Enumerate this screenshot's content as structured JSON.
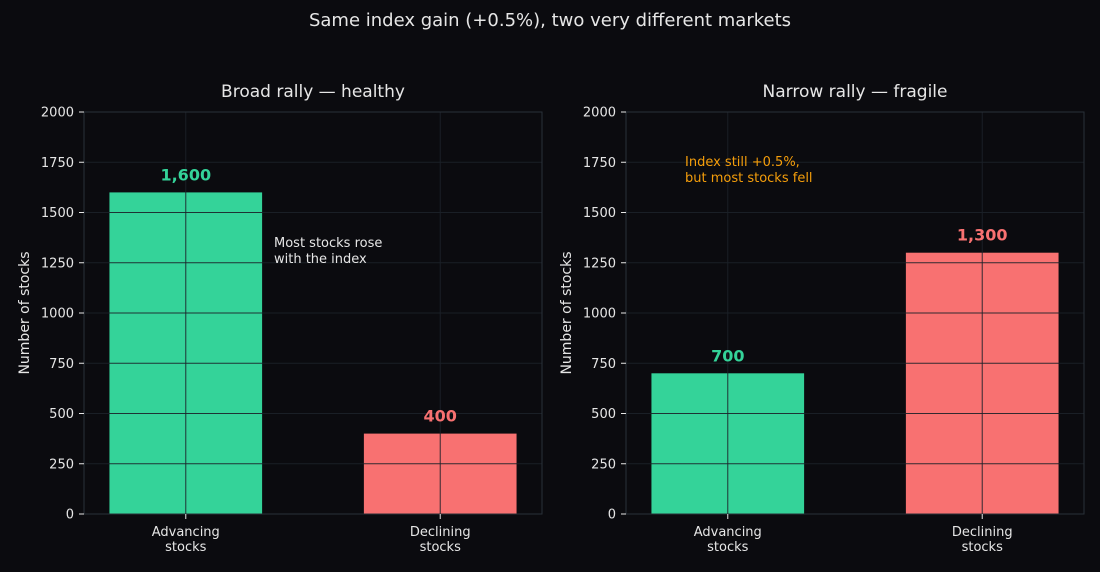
{
  "figure": {
    "title": "Same index gain (+0.5%), two very different markets"
  },
  "theme": {
    "background": "#0b0b0f",
    "text": "#e6e6e6",
    "axis": "#2a3038",
    "grid": "#1c2129",
    "advancing": "#34d399",
    "declining": "#f87171",
    "note_highlight": "#f59e0b"
  },
  "chart_data": [
    {
      "type": "bar",
      "title": "Broad rally — healthy",
      "categories": [
        "Advancing\nstocks",
        "Declining\nstocks"
      ],
      "values": [
        1600,
        400
      ],
      "value_labels": [
        "1,600",
        "400"
      ],
      "bar_colors": [
        "#34d399",
        "#f87171"
      ],
      "xlabel": "",
      "ylabel": "Number of stocks",
      "ylim": [
        0,
        2000
      ],
      "yticks": [
        0,
        250,
        500,
        750,
        1000,
        1250,
        1500,
        1750,
        2000
      ],
      "grid": true,
      "annotation": {
        "text": "Most stocks rose\nwith the index",
        "color": "#e6e6e6"
      }
    },
    {
      "type": "bar",
      "title": "Narrow rally — fragile",
      "categories": [
        "Advancing\nstocks",
        "Declining\nstocks"
      ],
      "values": [
        700,
        1300
      ],
      "value_labels": [
        "700",
        "1,300"
      ],
      "bar_colors": [
        "#34d399",
        "#f87171"
      ],
      "xlabel": "",
      "ylabel": "Number of stocks",
      "ylim": [
        0,
        2000
      ],
      "yticks": [
        0,
        250,
        500,
        750,
        1000,
        1250,
        1500,
        1750,
        2000
      ],
      "grid": true,
      "annotation": {
        "text": "Index still +0.5%,\nbut most stocks fell",
        "color": "#f59e0b"
      }
    }
  ]
}
